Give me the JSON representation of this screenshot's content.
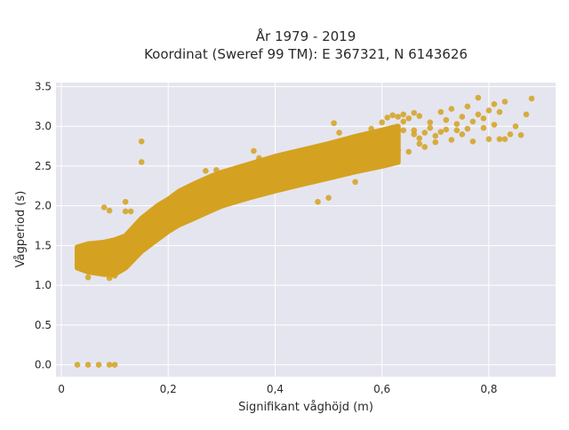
{
  "chart_data": {
    "type": "scatter",
    "title_line1": "År 1979 - 2019",
    "title_line2": "Koordinat (Sweref 99 TM): E 367321, N 6143626",
    "xlabel": "Signifikant våghöjd (m)",
    "ylabel": "Vågperiod (s)",
    "xlim": [
      -0.01,
      0.925
    ],
    "ylim": [
      -0.15,
      3.55
    ],
    "x_ticks": [
      0,
      0.2,
      0.4,
      0.6,
      0.8
    ],
    "x_tick_labels": [
      "0",
      "0,2",
      "0,4",
      "0,6",
      "0,8"
    ],
    "y_ticks": [
      0,
      0.5,
      1.0,
      1.5,
      2.0,
      2.5,
      3.0,
      3.5
    ],
    "y_tick_labels": [
      "0.0",
      "0.5",
      "1.0",
      "1.5",
      "2.0",
      "2.5",
      "3.0",
      "3.5"
    ],
    "grid": true,
    "marker_color": "#D4A220",
    "plot_bg": "#E5E5EF",
    "dense_band": [
      [
        0.03,
        1.22,
        1.48
      ],
      [
        0.05,
        1.17,
        1.52
      ],
      [
        0.08,
        1.14,
        1.54
      ],
      [
        0.1,
        1.14,
        1.57
      ],
      [
        0.12,
        1.22,
        1.62
      ],
      [
        0.15,
        1.43,
        1.84
      ],
      [
        0.18,
        1.58,
        2.0
      ],
      [
        0.2,
        1.68,
        2.08
      ],
      [
        0.22,
        1.76,
        2.18
      ],
      [
        0.25,
        1.85,
        2.28
      ],
      [
        0.28,
        1.94,
        2.37
      ],
      [
        0.3,
        2.0,
        2.42
      ],
      [
        0.35,
        2.1,
        2.52
      ],
      [
        0.4,
        2.19,
        2.62
      ],
      [
        0.45,
        2.27,
        2.7
      ],
      [
        0.5,
        2.35,
        2.78
      ],
      [
        0.55,
        2.43,
        2.87
      ],
      [
        0.6,
        2.5,
        2.95
      ],
      [
        0.63,
        2.55,
        3.0
      ]
    ],
    "points": [
      [
        0.03,
        0.0
      ],
      [
        0.05,
        0.0
      ],
      [
        0.07,
        0.0
      ],
      [
        0.09,
        0.0
      ],
      [
        0.1,
        0.0
      ],
      [
        0.15,
        2.81
      ],
      [
        0.15,
        2.55
      ],
      [
        0.08,
        1.98
      ],
      [
        0.09,
        1.94
      ],
      [
        0.12,
        1.93
      ],
      [
        0.13,
        1.93
      ],
      [
        0.12,
        2.05
      ],
      [
        0.03,
        1.26
      ],
      [
        0.05,
        1.1
      ],
      [
        0.09,
        1.09
      ],
      [
        0.1,
        1.12
      ],
      [
        0.27,
        2.44
      ],
      [
        0.29,
        2.45
      ],
      [
        0.36,
        2.69
      ],
      [
        0.37,
        2.6
      ],
      [
        0.41,
        2.4
      ],
      [
        0.48,
        2.05
      ],
      [
        0.5,
        2.1
      ],
      [
        0.51,
        3.04
      ],
      [
        0.52,
        2.92
      ],
      [
        0.55,
        2.3
      ],
      [
        0.58,
        2.91
      ],
      [
        0.58,
        2.97
      ],
      [
        0.6,
        3.05
      ],
      [
        0.61,
        3.11
      ],
      [
        0.62,
        3.14
      ],
      [
        0.63,
        3.12
      ],
      [
        0.64,
        3.15
      ],
      [
        0.65,
        3.1
      ],
      [
        0.66,
        3.17
      ],
      [
        0.67,
        3.13
      ],
      [
        0.64,
        2.95
      ],
      [
        0.66,
        2.9
      ],
      [
        0.67,
        2.85
      ],
      [
        0.68,
        2.92
      ],
      [
        0.68,
        2.74
      ],
      [
        0.69,
        3.05
      ],
      [
        0.69,
        2.98
      ],
      [
        0.7,
        2.8
      ],
      [
        0.7,
        2.88
      ],
      [
        0.71,
        2.93
      ],
      [
        0.71,
        3.18
      ],
      [
        0.72,
        3.08
      ],
      [
        0.72,
        2.96
      ],
      [
        0.73,
        2.83
      ],
      [
        0.73,
        3.22
      ],
      [
        0.74,
        3.03
      ],
      [
        0.74,
        2.95
      ],
      [
        0.75,
        3.12
      ],
      [
        0.75,
        2.9
      ],
      [
        0.76,
        3.25
      ],
      [
        0.76,
        2.97
      ],
      [
        0.77,
        3.06
      ],
      [
        0.77,
        2.81
      ],
      [
        0.78,
        3.36
      ],
      [
        0.78,
        3.15
      ],
      [
        0.79,
        2.98
      ],
      [
        0.79,
        3.1
      ],
      [
        0.8,
        3.2
      ],
      [
        0.8,
        2.84
      ],
      [
        0.81,
        3.28
      ],
      [
        0.81,
        3.02
      ],
      [
        0.82,
        2.84
      ],
      [
        0.82,
        3.18
      ],
      [
        0.83,
        3.31
      ],
      [
        0.83,
        2.84
      ],
      [
        0.84,
        2.9
      ],
      [
        0.87,
        3.15
      ],
      [
        0.88,
        3.35
      ],
      [
        0.86,
        2.89
      ],
      [
        0.85,
        3.0
      ],
      [
        0.63,
        2.7
      ],
      [
        0.65,
        2.68
      ],
      [
        0.67,
        2.78
      ],
      [
        0.66,
        2.95
      ],
      [
        0.64,
        3.06
      ]
    ]
  }
}
